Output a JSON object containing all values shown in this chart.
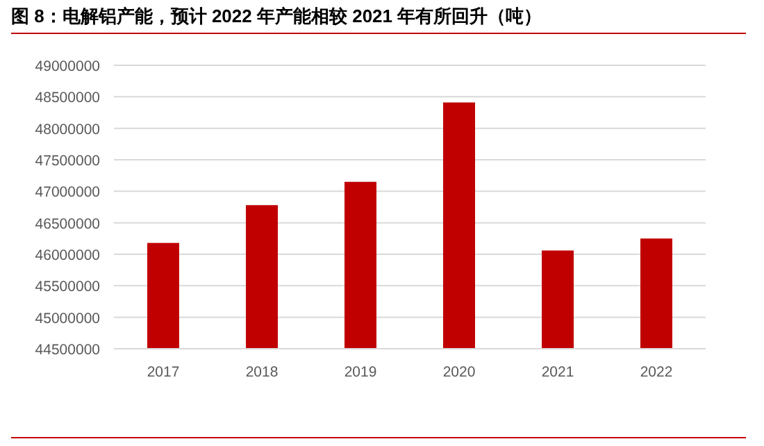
{
  "chart_data": {
    "type": "bar",
    "title": "图 8：电解铝产能，预计 2022 年产能相较 2021 年有所回升（吨）",
    "categories": [
      "2017",
      "2018",
      "2019",
      "2020",
      "2021",
      "2022"
    ],
    "values": [
      46180000,
      46780000,
      47150000,
      48410000,
      46060000,
      46250000
    ],
    "color": "#c00000",
    "ylim": [
      44500000,
      49000000
    ],
    "yticks": [
      44500000,
      45000000,
      45500000,
      46000000,
      46500000,
      47000000,
      47500000,
      48000000,
      48500000,
      49000000
    ],
    "grid": "y",
    "legend": false
  }
}
